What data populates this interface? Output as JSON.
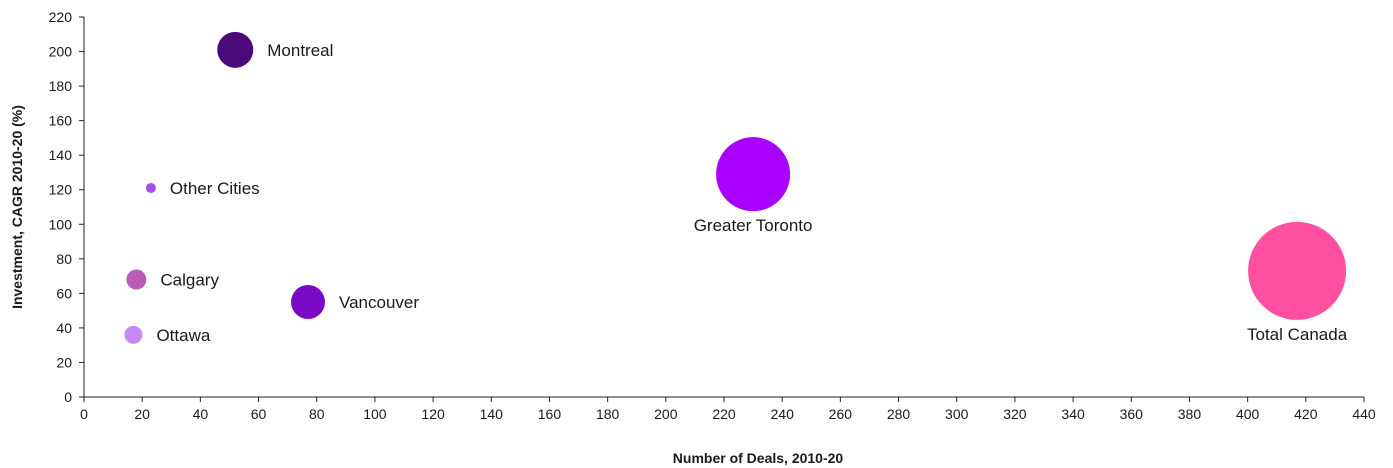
{
  "chart_data": {
    "type": "scatter",
    "title": "",
    "xlabel": "Number of Deals,  2010-20",
    "ylabel": "Investment, CAGR 2010-20 (%)",
    "xlim": [
      0,
      440
    ],
    "ylim": [
      0,
      220
    ],
    "x_ticks": [
      0,
      20,
      40,
      60,
      80,
      100,
      120,
      140,
      160,
      180,
      200,
      220,
      240,
      260,
      280,
      300,
      320,
      340,
      360,
      380,
      400,
      420,
      440
    ],
    "y_ticks": [
      0,
      20,
      40,
      60,
      80,
      100,
      120,
      140,
      160,
      180,
      200,
      220
    ],
    "grid": false,
    "points": [
      {
        "label": "Montreal",
        "x": 52,
        "y": 201,
        "size": 18,
        "color": "#4b0a7a",
        "label_position": "right"
      },
      {
        "label": "Other Cities",
        "x": 23,
        "y": 121,
        "size": 5,
        "color": "#a64df0",
        "label_position": "right"
      },
      {
        "label": "Greater Toronto",
        "x": 230,
        "y": 129,
        "size": 37,
        "color": "#aa00ff",
        "label_position": "below"
      },
      {
        "label": "Total Canada",
        "x": 417,
        "y": 73,
        "size": 49,
        "color": "#ff4fa0",
        "label_position": "below"
      },
      {
        "label": "Calgary",
        "x": 18,
        "y": 68,
        "size": 10,
        "color": "#b85cb5",
        "label_position": "right"
      },
      {
        "label": "Vancouver",
        "x": 77,
        "y": 55,
        "size": 17,
        "color": "#7a0ac6",
        "label_position": "right"
      },
      {
        "label": "Ottawa",
        "x": 17,
        "y": 36,
        "size": 9,
        "color": "#c58af5",
        "label_position": "right"
      }
    ]
  }
}
